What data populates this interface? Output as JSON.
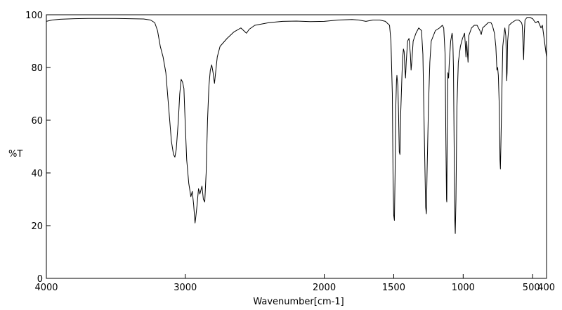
{
  "chart_data": {
    "type": "line",
    "title": "",
    "xlabel": "Wavenumber[cm-1]",
    "ylabel": "%T",
    "xlim": [
      4000,
      400
    ],
    "ylim": [
      0,
      100
    ],
    "x_reversed": true,
    "grid": false,
    "x_ticks": [
      {
        "value": 4000,
        "label": "4000"
      },
      {
        "value": 3000,
        "label": "3000"
      },
      {
        "value": 2000,
        "label": "2000"
      },
      {
        "value": 1500,
        "label": "1500"
      },
      {
        "value": 1000,
        "label": "1000"
      },
      {
        "value": 500,
        "label": "500"
      },
      {
        "value": 400,
        "label": "400"
      }
    ],
    "y_ticks": [
      {
        "value": 0,
        "label": "0"
      },
      {
        "value": 20,
        "label": "20"
      },
      {
        "value": 40,
        "label": "40"
      },
      {
        "value": 60,
        "label": "60"
      },
      {
        "value": 80,
        "label": "80"
      },
      {
        "value": 100,
        "label": "100"
      }
    ],
    "series": [
      {
        "color": "#000000",
        "points": [
          [
            4000,
            97.5
          ],
          [
            3960,
            98.0
          ],
          [
            3900,
            98.3
          ],
          [
            3800,
            98.5
          ],
          [
            3700,
            98.6
          ],
          [
            3600,
            98.6
          ],
          [
            3500,
            98.6
          ],
          [
            3400,
            98.5
          ],
          [
            3300,
            98.4
          ],
          [
            3250,
            98.0
          ],
          [
            3220,
            97.0
          ],
          [
            3200,
            94.0
          ],
          [
            3180,
            88.0
          ],
          [
            3160,
            84.0
          ],
          [
            3140,
            78.0
          ],
          [
            3120,
            65.0
          ],
          [
            3100,
            52.0
          ],
          [
            3085,
            47.0
          ],
          [
            3075,
            46.0
          ],
          [
            3065,
            49.0
          ],
          [
            3050,
            60.0
          ],
          [
            3040,
            70.0
          ],
          [
            3030,
            75.5
          ],
          [
            3020,
            74.5
          ],
          [
            3010,
            72.0
          ],
          [
            3000,
            58.0
          ],
          [
            2990,
            45.0
          ],
          [
            2975,
            36.0
          ],
          [
            2960,
            31.0
          ],
          [
            2950,
            33.0
          ],
          [
            2940,
            28.0
          ],
          [
            2930,
            21.0
          ],
          [
            2925,
            23.0
          ],
          [
            2915,
            28.0
          ],
          [
            2905,
            34.0
          ],
          [
            2895,
            32.0
          ],
          [
            2880,
            35.0
          ],
          [
            2870,
            30.0
          ],
          [
            2860,
            29.0
          ],
          [
            2850,
            40.0
          ],
          [
            2840,
            60.0
          ],
          [
            2830,
            73.0
          ],
          [
            2820,
            79.0
          ],
          [
            2810,
            81.0
          ],
          [
            2800,
            78.0
          ],
          [
            2790,
            74.0
          ],
          [
            2780,
            79.0
          ],
          [
            2770,
            84.0
          ],
          [
            2750,
            88.0
          ],
          [
            2700,
            91.0
          ],
          [
            2650,
            93.5
          ],
          [
            2600,
            95.0
          ],
          [
            2560,
            93.0
          ],
          [
            2540,
            94.5
          ],
          [
            2500,
            96.0
          ],
          [
            2400,
            97.0
          ],
          [
            2300,
            97.5
          ],
          [
            2200,
            97.6
          ],
          [
            2100,
            97.4
          ],
          [
            2000,
            97.5
          ],
          [
            1900,
            98.0
          ],
          [
            1800,
            98.2
          ],
          [
            1750,
            98.0
          ],
          [
            1700,
            97.5
          ],
          [
            1650,
            98.0
          ],
          [
            1600,
            98.0
          ],
          [
            1560,
            97.5
          ],
          [
            1530,
            96.0
          ],
          [
            1520,
            90.0
          ],
          [
            1510,
            70.0
          ],
          [
            1505,
            40.0
          ],
          [
            1500,
            24.0
          ],
          [
            1495,
            22.0
          ],
          [
            1490,
            40.0
          ],
          [
            1485,
            65.0
          ],
          [
            1480,
            75.0
          ],
          [
            1477,
            77.0
          ],
          [
            1470,
            73.0
          ],
          [
            1465,
            62.0
          ],
          [
            1460,
            48.0
          ],
          [
            1455,
            47.0
          ],
          [
            1450,
            62.0
          ],
          [
            1440,
            78.0
          ],
          [
            1435,
            84.0
          ],
          [
            1430,
            87.0
          ],
          [
            1425,
            86.0
          ],
          [
            1420,
            80.0
          ],
          [
            1415,
            76.0
          ],
          [
            1410,
            82.0
          ],
          [
            1400,
            90.0
          ],
          [
            1390,
            91.0
          ],
          [
            1380,
            85.0
          ],
          [
            1375,
            79.0
          ],
          [
            1370,
            82.0
          ],
          [
            1360,
            90.0
          ],
          [
            1340,
            93.0
          ],
          [
            1320,
            95.0
          ],
          [
            1300,
            94.0
          ],
          [
            1290,
            85.0
          ],
          [
            1280,
            55.0
          ],
          [
            1270,
            27.0
          ],
          [
            1265,
            24.5
          ],
          [
            1260,
            40.0
          ],
          [
            1250,
            65.0
          ],
          [
            1240,
            82.0
          ],
          [
            1230,
            90.0
          ],
          [
            1200,
            94.0
          ],
          [
            1170,
            95.0
          ],
          [
            1150,
            96.0
          ],
          [
            1140,
            95.0
          ],
          [
            1130,
            85.0
          ],
          [
            1125,
            55.0
          ],
          [
            1120,
            30.0
          ],
          [
            1118,
            29.0
          ],
          [
            1115,
            55.0
          ],
          [
            1110,
            78.0
          ],
          [
            1105,
            76.0
          ],
          [
            1100,
            82.0
          ],
          [
            1090,
            90.0
          ],
          [
            1080,
            93.0
          ],
          [
            1075,
            91.0
          ],
          [
            1070,
            80.0
          ],
          [
            1065,
            50.0
          ],
          [
            1060,
            22.0
          ],
          [
            1057,
            17.0
          ],
          [
            1052,
            30.0
          ],
          [
            1045,
            65.0
          ],
          [
            1035,
            82.0
          ],
          [
            1020,
            88.0
          ],
          [
            1005,
            91.0
          ],
          [
            990,
            93.0
          ],
          [
            985,
            89.0
          ],
          [
            980,
            84.0
          ],
          [
            975,
            90.0
          ],
          [
            970,
            86.0
          ],
          [
            965,
            82.0
          ],
          [
            960,
            92.0
          ],
          [
            940,
            95.0
          ],
          [
            920,
            96.0
          ],
          [
            900,
            96.0
          ],
          [
            880,
            94.0
          ],
          [
            870,
            92.5
          ],
          [
            860,
            95.0
          ],
          [
            840,
            96.0
          ],
          [
            820,
            97.0
          ],
          [
            800,
            97.0
          ],
          [
            790,
            96.0
          ],
          [
            775,
            93.0
          ],
          [
            765,
            88.0
          ],
          [
            757,
            79.0
          ],
          [
            752,
            80.0
          ],
          [
            747,
            77.0
          ],
          [
            740,
            65.0
          ],
          [
            735,
            45.0
          ],
          [
            732,
            41.5
          ],
          [
            727,
            55.0
          ],
          [
            720,
            75.0
          ],
          [
            715,
            88.0
          ],
          [
            705,
            93.0
          ],
          [
            700,
            95.0
          ],
          [
            693,
            92.0
          ],
          [
            690,
            85.0
          ],
          [
            687,
            75.0
          ],
          [
            684,
            78.0
          ],
          [
            680,
            90.0
          ],
          [
            670,
            96.0
          ],
          [
            650,
            97.0
          ],
          [
            620,
            98.0
          ],
          [
            600,
            98.0
          ],
          [
            580,
            97.0
          ],
          [
            575,
            96.0
          ],
          [
            570,
            90.0
          ],
          [
            565,
            83.0
          ],
          [
            560,
            93.0
          ],
          [
            555,
            98.0
          ],
          [
            540,
            99.0
          ],
          [
            520,
            99.0
          ],
          [
            500,
            98.5
          ],
          [
            480,
            97.0
          ],
          [
            460,
            97.5
          ],
          [
            440,
            95.0
          ],
          [
            430,
            96.0
          ],
          [
            420,
            92.0
          ],
          [
            410,
            88.0
          ],
          [
            405,
            86.0
          ],
          [
            400,
            84.0
          ]
        ]
      }
    ]
  }
}
